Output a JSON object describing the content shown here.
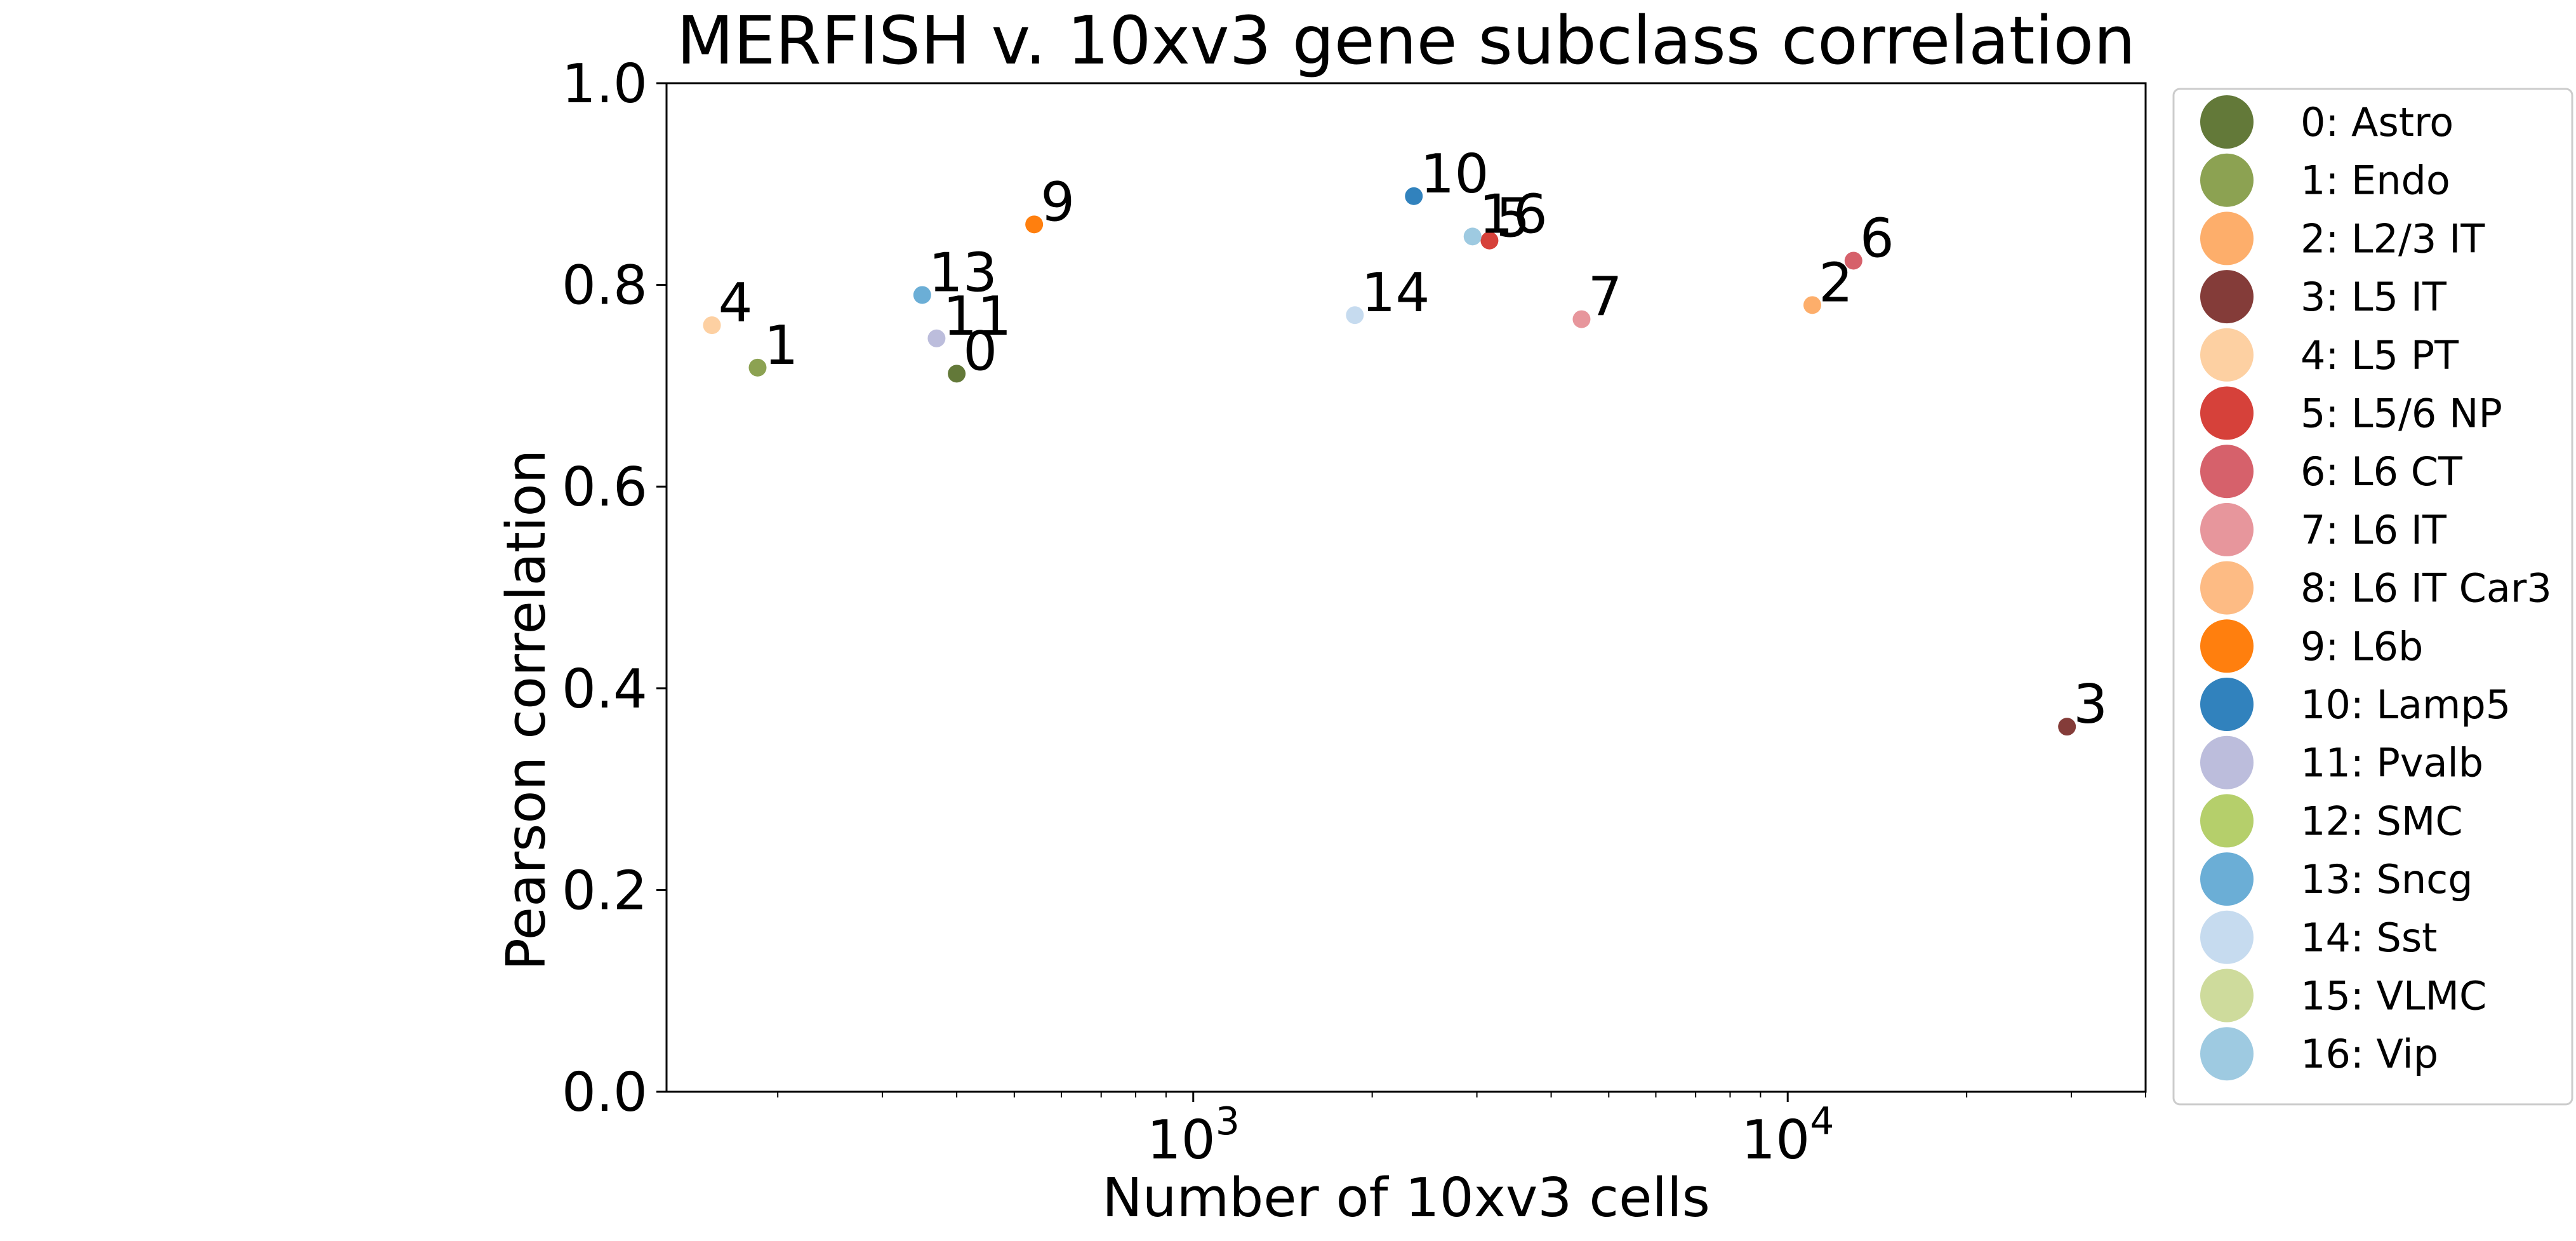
{
  "chart_data": {
    "type": "scatter",
    "title": "MERFISH v. 10xv3 gene subclass correlation",
    "xlabel": "Number of 10xv3 cells",
    "ylabel": "Pearson correlation",
    "xscale": "log",
    "xlim": [
      130,
      40000
    ],
    "ylim": [
      0,
      1
    ],
    "x_ticks": [
      {
        "value": 1000,
        "base": "10",
        "exp": "3"
      },
      {
        "value": 10000,
        "base": "10",
        "exp": "4"
      }
    ],
    "y_ticks": [
      "0.0",
      "0.2",
      "0.4",
      "0.6",
      "0.8",
      "1.0"
    ],
    "grid": false,
    "legend_position": "outside-right",
    "points": [
      {
        "id": "0",
        "name": "0: Astro",
        "x": 400,
        "y": 0.712,
        "color": "#637939"
      },
      {
        "id": "1",
        "name": "1: Endo",
        "x": 185,
        "y": 0.718,
        "color": "#8ca252"
      },
      {
        "id": "2",
        "name": "2: L2/3 IT",
        "x": 11000,
        "y": 0.78,
        "color": "#fdae6b"
      },
      {
        "id": "3",
        "name": "3: L5 IT",
        "x": 29500,
        "y": 0.362,
        "color": "#843c39"
      },
      {
        "id": "4",
        "name": "4: L5 PT",
        "x": 155,
        "y": 0.76,
        "color": "#fdd0a2"
      },
      {
        "id": "5",
        "name": "5: L5/6 NP",
        "x": 3150,
        "y": 0.844,
        "color": "#d6413a"
      },
      {
        "id": "6",
        "name": "6: L6 CT",
        "x": 12900,
        "y": 0.824,
        "color": "#d6616b"
      },
      {
        "id": "7",
        "name": "7: L6 IT",
        "x": 4500,
        "y": 0.766,
        "color": "#e7969c"
      },
      {
        "id": "8",
        "name": "8: L6 IT Car3",
        "x": null,
        "y": null,
        "color": "#fdbb84"
      },
      {
        "id": "9",
        "name": "9: L6b",
        "x": 540,
        "y": 0.86,
        "color": "#ff7f0e"
      },
      {
        "id": "10",
        "name": "10: Lamp5",
        "x": 2350,
        "y": 0.888,
        "color": "#3182bd"
      },
      {
        "id": "11",
        "name": "11: Pvalb",
        "x": 370,
        "y": 0.747,
        "color": "#bcbddc"
      },
      {
        "id": "12",
        "name": "12: SMC",
        "x": null,
        "y": null,
        "color": "#b5cf6b"
      },
      {
        "id": "13",
        "name": "13: Sncg",
        "x": 350,
        "y": 0.79,
        "color": "#6baed6"
      },
      {
        "id": "14",
        "name": "14: Sst",
        "x": 1870,
        "y": 0.77,
        "color": "#c6dbef"
      },
      {
        "id": "15",
        "name": "15: VLMC",
        "x": null,
        "y": null,
        "color": "#cedb9c"
      },
      {
        "id": "16",
        "name": "16: Vip",
        "x": 2950,
        "y": 0.848,
        "color": "#9ecae1"
      }
    ]
  }
}
